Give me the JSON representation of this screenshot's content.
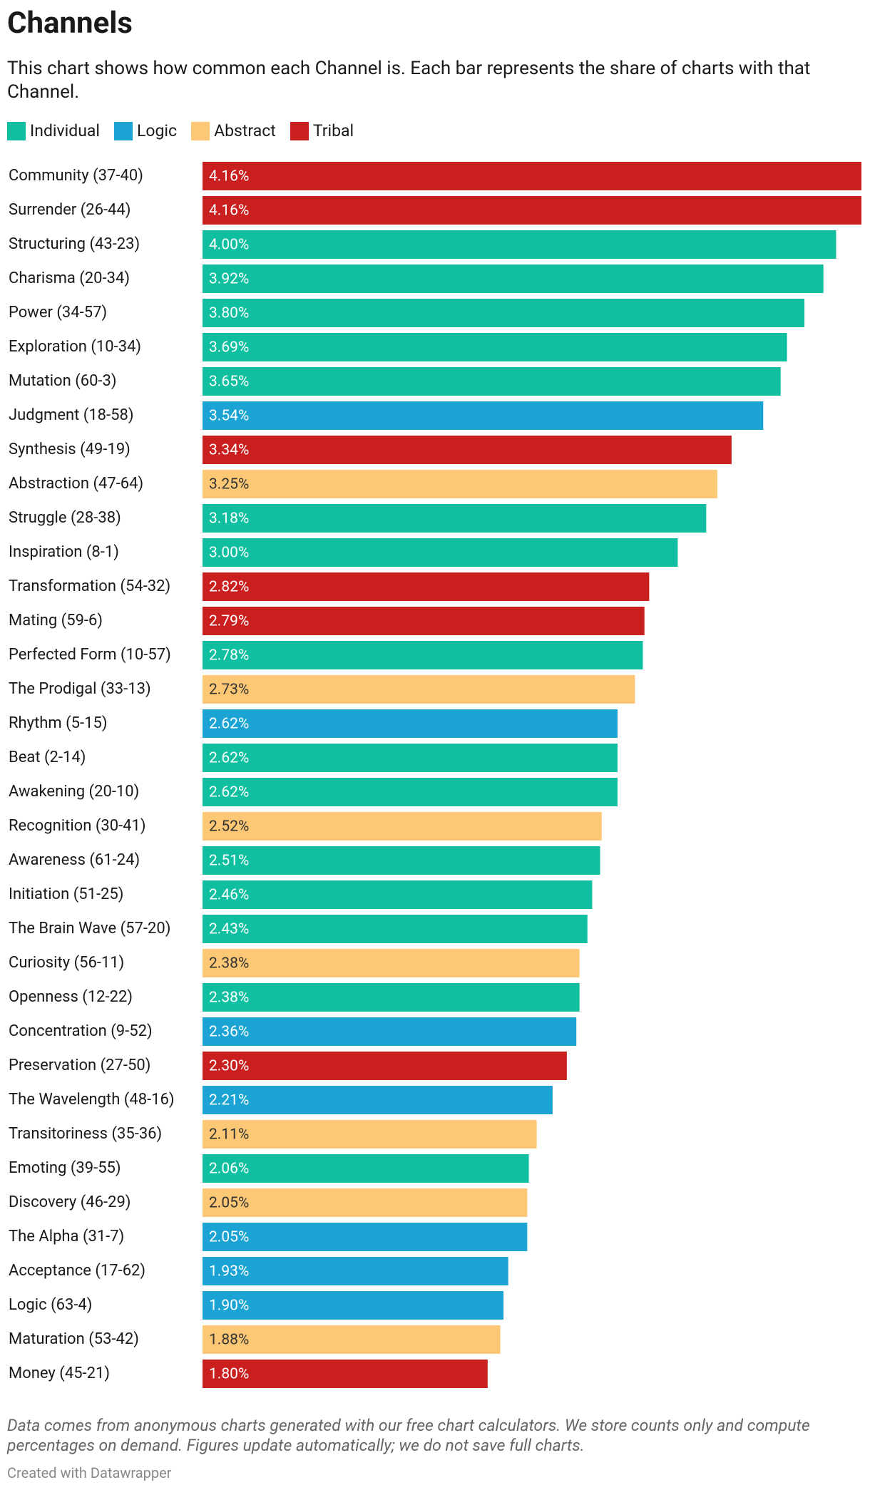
{
  "chart_data": {
    "type": "bar",
    "orientation": "horizontal",
    "title": "Channels",
    "subtitle": "This chart shows how common each Channel is. Each bar represents the share of charts with that Channel.",
    "note": "Data comes from anonymous charts generated with our free chart calculators. We store counts only and compute percentages on demand. Figures update automatically; we do not save full charts.",
    "credit": "Created with Datawrapper",
    "xlim": [
      0,
      4.16
    ],
    "categories": [
      "Community (37-40)",
      "Surrender (26-44)",
      "Structuring (43-23)",
      "Charisma (20-34)",
      "Power (34-57)",
      "Exploration (10-34)",
      "Mutation (60-3)",
      "Judgment (18-58)",
      "Synthesis (49-19)",
      "Abstraction (47-64)",
      "Struggle (28-38)",
      "Inspiration (8-1)",
      "Transformation (54-32)",
      "Mating (59-6)",
      "Perfected Form (10-57)",
      "The Prodigal (33-13)",
      "Rhythm (5-15)",
      "Beat (2-14)",
      "Awakening (20-10)",
      "Recognition (30-41)",
      "Awareness (61-24)",
      "Initiation (51-25)",
      "The Brain Wave (57-20)",
      "Curiosity (56-11)",
      "Openness (12-22)",
      "Concentration (9-52)",
      "Preservation (27-50)",
      "The Wavelength (48-16)",
      "Transitoriness (35-36)",
      "Emoting (39-55)",
      "Discovery (46-29)",
      "The Alpha (31-7)",
      "Acceptance (17-62)",
      "Logic (63-4)",
      "Maturation (53-42)",
      "Money (45-21)"
    ],
    "series": [
      {
        "name": "Individual",
        "color": "#0fbf9f",
        "label_color": "#ffffff",
        "values": [
          null,
          null,
          4,
          3.92,
          3.8,
          3.69,
          3.65,
          null,
          null,
          null,
          3.18,
          3,
          null,
          null,
          2.78,
          null,
          null,
          2.62,
          2.62,
          null,
          2.51,
          2.46,
          2.43,
          null,
          2.38,
          null,
          null,
          null,
          null,
          2.06,
          null,
          null,
          null,
          null,
          null,
          null
        ],
        "value_labels": [
          null,
          null,
          "4.00%",
          "3.92%",
          "3.80%",
          "3.69%",
          "3.65%",
          null,
          null,
          null,
          "3.18%",
          "3.00%",
          null,
          null,
          "2.78%",
          null,
          null,
          "2.62%",
          "2.62%",
          null,
          "2.51%",
          "2.46%",
          "2.43%",
          null,
          "2.38%",
          null,
          null,
          null,
          null,
          "2.06%",
          null,
          null,
          null,
          null,
          null,
          null
        ]
      },
      {
        "name": "Logic",
        "color": "#1aa3d3",
        "label_color": "#ffffff",
        "values": [
          null,
          null,
          null,
          null,
          null,
          null,
          null,
          3.54,
          null,
          null,
          null,
          null,
          null,
          null,
          null,
          null,
          2.62,
          null,
          null,
          null,
          null,
          null,
          null,
          null,
          null,
          2.36,
          null,
          2.21,
          null,
          null,
          null,
          2.05,
          1.93,
          1.9,
          null,
          null
        ],
        "value_labels": [
          null,
          null,
          null,
          null,
          null,
          null,
          null,
          "3.54%",
          null,
          null,
          null,
          null,
          null,
          null,
          null,
          null,
          "2.62%",
          null,
          null,
          null,
          null,
          null,
          null,
          null,
          null,
          "2.36%",
          null,
          "2.21%",
          null,
          null,
          null,
          "2.05%",
          "1.93%",
          "1.90%",
          null,
          null
        ]
      },
      {
        "name": "Abstract",
        "color": "#fdc876",
        "label_color": "#333333",
        "values": [
          null,
          null,
          null,
          null,
          null,
          null,
          null,
          null,
          null,
          3.25,
          null,
          null,
          null,
          null,
          null,
          2.73,
          null,
          null,
          null,
          2.52,
          null,
          null,
          null,
          2.38,
          null,
          null,
          null,
          null,
          2.11,
          null,
          2.05,
          null,
          null,
          null,
          1.88,
          null
        ],
        "value_labels": [
          null,
          null,
          null,
          null,
          null,
          null,
          null,
          null,
          null,
          "3.25%",
          null,
          null,
          null,
          null,
          null,
          "2.73%",
          null,
          null,
          null,
          "2.52%",
          null,
          null,
          null,
          "2.38%",
          null,
          null,
          null,
          null,
          "2.11%",
          null,
          "2.05%",
          null,
          null,
          null,
          "1.88%",
          null
        ]
      },
      {
        "name": "Tribal",
        "color": "#c91f1f",
        "label_color": "#ffffff",
        "values": [
          4.16,
          4.16,
          null,
          null,
          null,
          null,
          null,
          null,
          3.34,
          null,
          null,
          null,
          2.82,
          2.79,
          null,
          null,
          null,
          null,
          null,
          null,
          null,
          null,
          null,
          null,
          null,
          null,
          2.3,
          null,
          null,
          null,
          null,
          null,
          null,
          null,
          null,
          1.8
        ],
        "value_labels": [
          "4.16%",
          "4.16%",
          null,
          null,
          null,
          null,
          null,
          null,
          "3.34%",
          null,
          null,
          null,
          "2.82%",
          "2.79%",
          null,
          null,
          null,
          null,
          null,
          null,
          null,
          null,
          null,
          null,
          null,
          null,
          "2.30%",
          null,
          null,
          null,
          null,
          null,
          null,
          null,
          null,
          "1.80%"
        ]
      }
    ]
  }
}
